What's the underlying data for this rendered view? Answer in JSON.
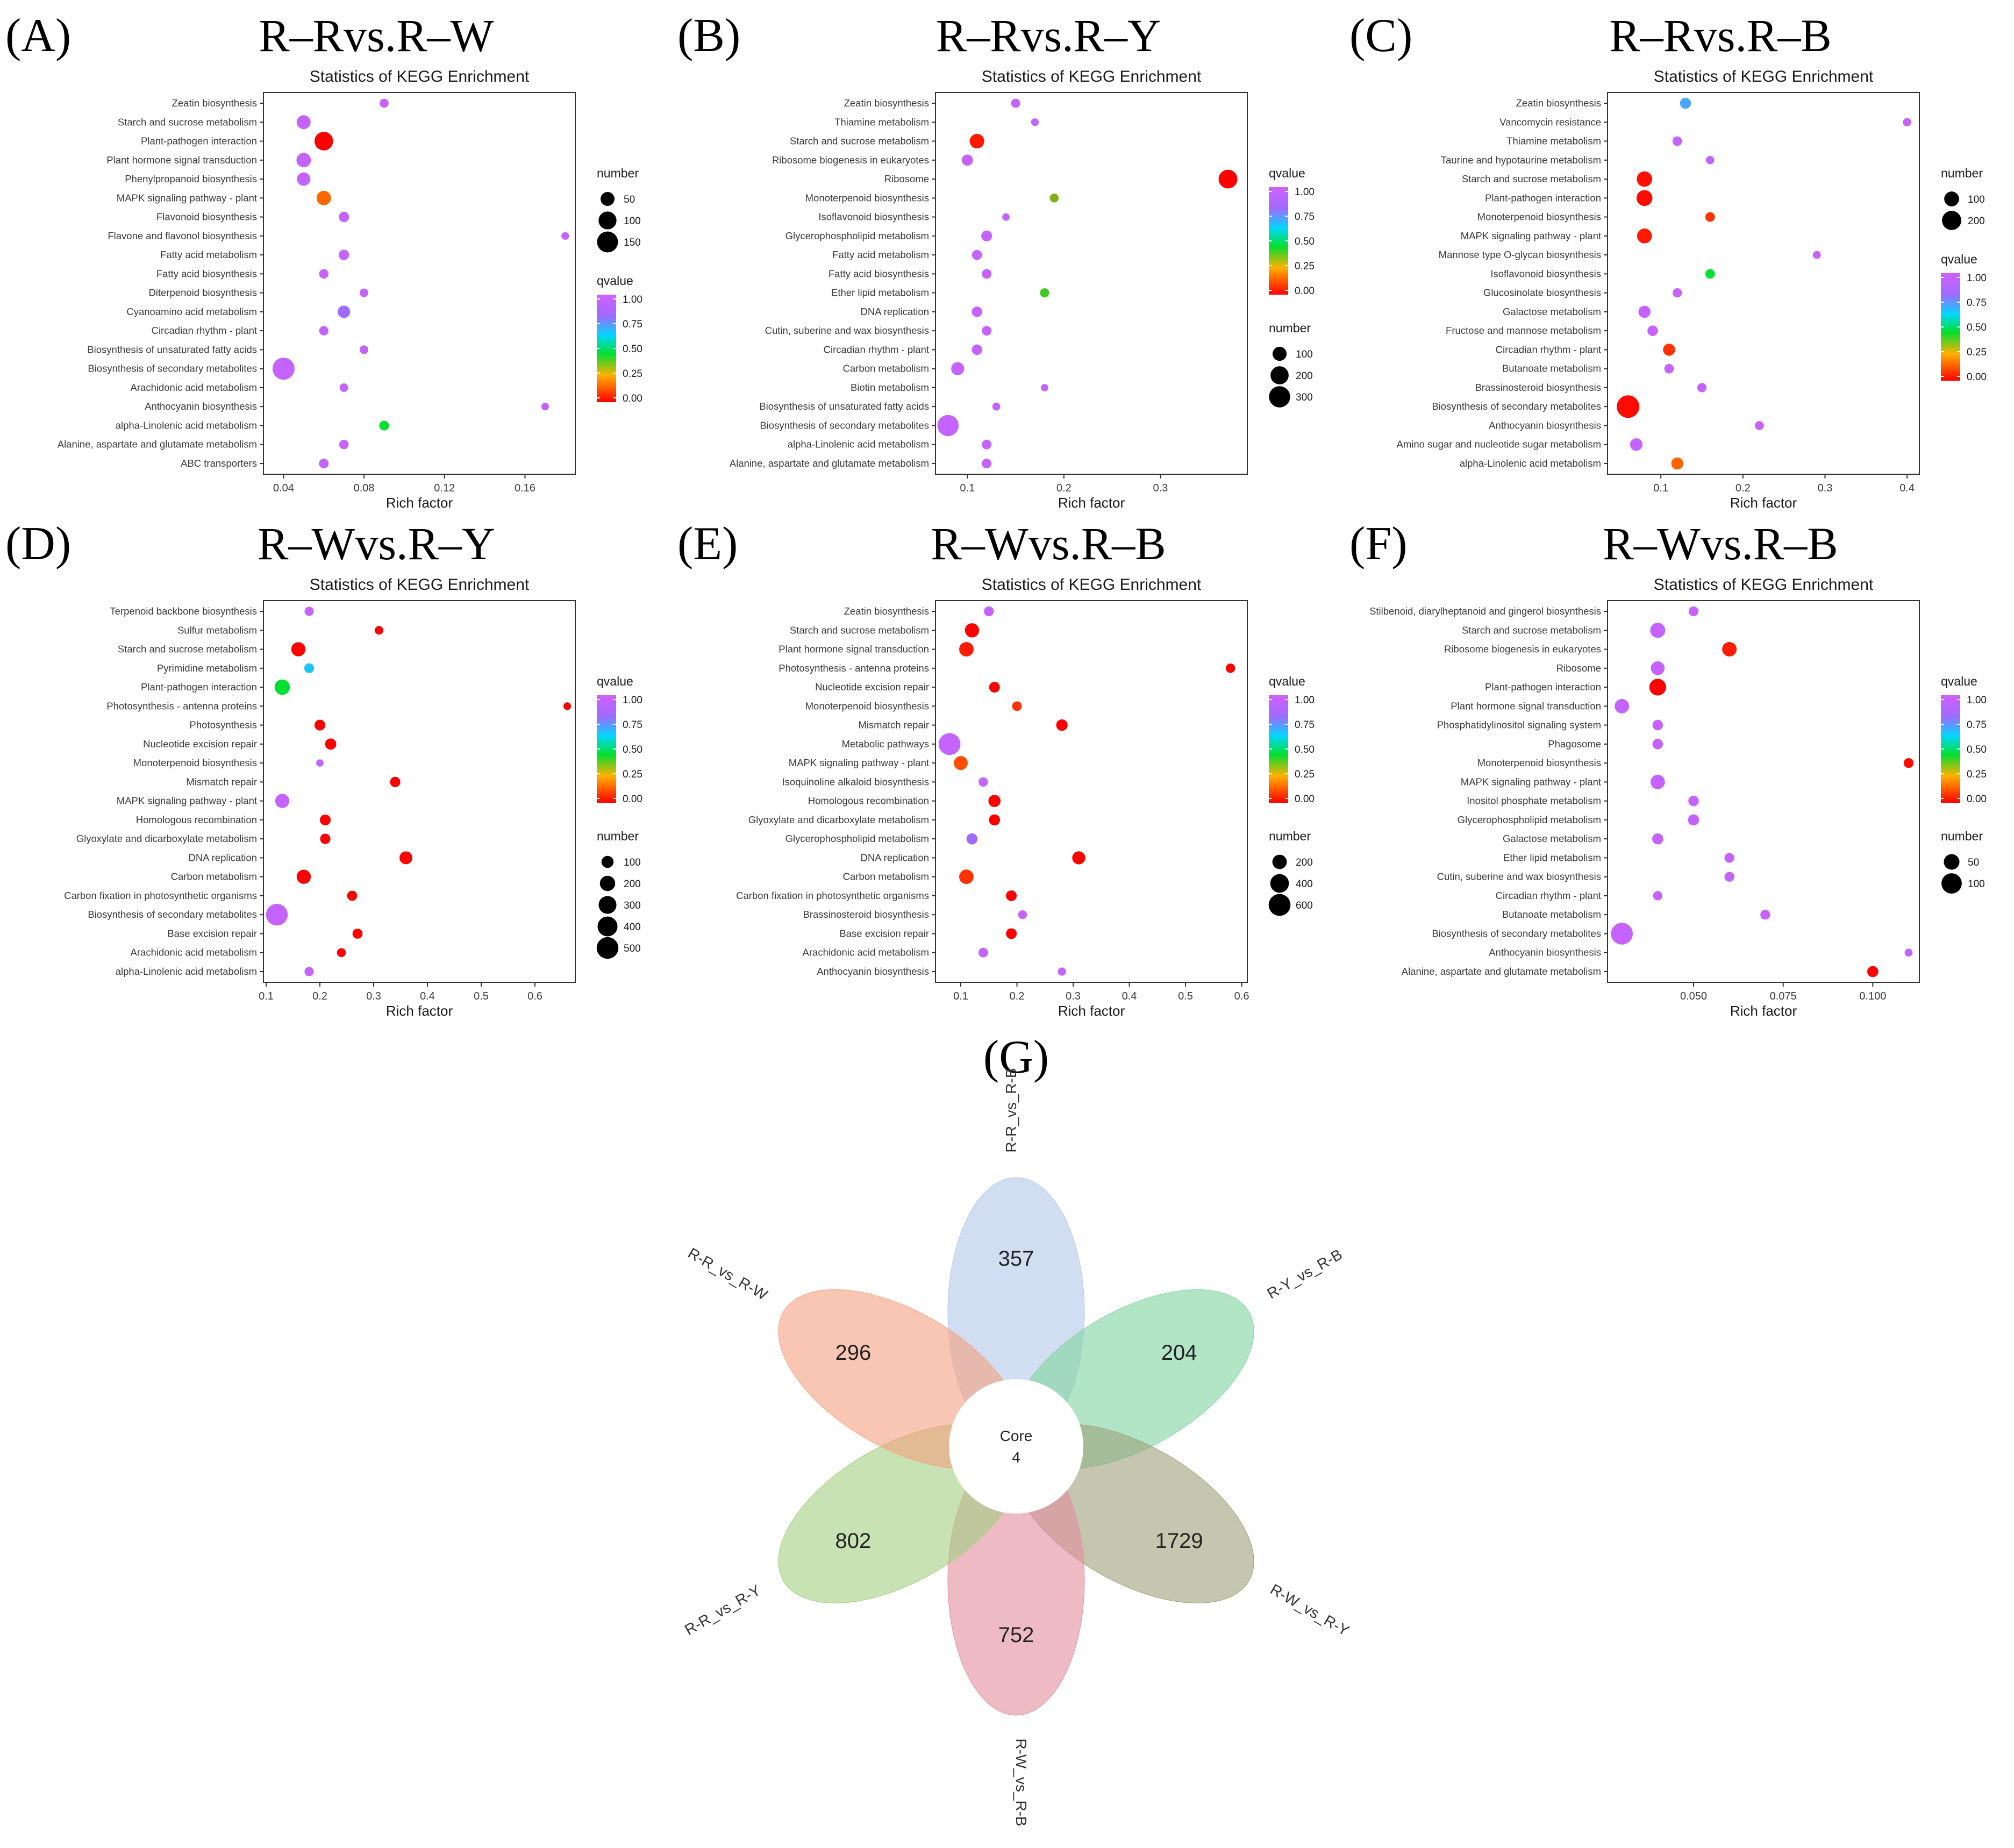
{
  "figure_labels": {
    "G": "(G)"
  },
  "colors": {
    "qvalue_gradient": [
      "#FF0000",
      "#FF7F00",
      "#00E000",
      "#00E5FF",
      "#B84DFF",
      "#D060FF"
    ],
    "venn": [
      "#B3C8E8",
      "#F4A07E",
      "#7ED3A0",
      "#A3CF80",
      "#9DA07A",
      "#E28E9E"
    ]
  },
  "chart_data": [
    {
      "type": "scatter",
      "panel_label": "(A)",
      "panel_title": "R–Rvs.R–W",
      "title": "Statistics of KEGG Enrichment",
      "xlabel": "Rich factor",
      "ylabel": "",
      "xlim": [
        0.03,
        0.185
      ],
      "xticks": [
        0.04,
        0.08,
        0.12,
        0.16
      ],
      "xtick_labels": [
        "0.04",
        "0.08",
        "0.12",
        "0.16"
      ],
      "categories": [
        "Zeatin biosynthesis",
        "Starch and sucrose metabolism",
        "Plant-pathogen interaction",
        "Plant hormone signal transduction",
        "Phenylpropanoid biosynthesis",
        "MAPK signaling pathway - plant",
        "Flavonoid biosynthesis",
        "Flavone and flavonol biosynthesis",
        "Fatty acid metabolism",
        "Fatty acid biosynthesis",
        "Diterpenoid biosynthesis",
        "Cyanoamino acid metabolism",
        "Circadian rhythm - plant",
        "Biosynthesis of unsaturated fatty acids",
        "Biosynthesis of secondary metabolites",
        "Arachidonic acid metabolism",
        "Anthocyanin biosynthesis",
        "alpha-Linolenic acid metabolism",
        "Alanine, aspartate and glutamate metabolism",
        "ABC transporters"
      ],
      "rich_factor": [
        0.09,
        0.05,
        0.06,
        0.05,
        0.05,
        0.06,
        0.07,
        0.18,
        0.07,
        0.06,
        0.08,
        0.07,
        0.06,
        0.08,
        0.04,
        0.07,
        0.17,
        0.09,
        0.07,
        0.06
      ],
      "number": [
        12,
        50,
        110,
        55,
        45,
        55,
        20,
        6,
        20,
        14,
        10,
        35,
        14,
        10,
        170,
        10,
        6,
        16,
        14,
        16
      ],
      "qvalue": [
        0.95,
        0.95,
        0.0,
        0.95,
        0.95,
        0.2,
        0.95,
        0.95,
        0.95,
        0.95,
        0.95,
        0.8,
        0.95,
        0.95,
        0.95,
        0.95,
        0.95,
        0.45,
        0.95,
        0.95
      ],
      "legend_order": [
        "number",
        "qvalue"
      ],
      "size_legend": {
        "title": "number",
        "values": [
          50,
          100,
          150
        ]
      },
      "color_legend": {
        "title": "qvalue",
        "ticks": [
          "1.00",
          "0.75",
          "0.50",
          "0.25",
          "0.00"
        ]
      },
      "size_range": [
        0,
        180
      ]
    },
    {
      "type": "scatter",
      "panel_label": "(B)",
      "panel_title": "R–Rvs.R–Y",
      "title": "Statistics of KEGG Enrichment",
      "xlabel": "Rich factor",
      "ylabel": "",
      "xlim": [
        0.067,
        0.39
      ],
      "xticks": [
        0.1,
        0.2,
        0.3
      ],
      "xtick_labels": [
        "0.1",
        "0.2",
        "0.3"
      ],
      "categories": [
        "Zeatin biosynthesis",
        "Thiamine metabolism",
        "Starch and sucrose metabolism",
        "Ribosome biogenesis in eukaryotes",
        "Ribosome",
        "Monoterpenoid biosynthesis",
        "Isoflavonoid biosynthesis",
        "Glycerophospholipid metabolism",
        "Fatty acid metabolism",
        "Fatty acid biosynthesis",
        "Ether lipid metabolism",
        "DNA replication",
        "Cutin, suberine and wax biosynthesis",
        "Circadian rhythm - plant",
        "Carbon metabolism",
        "Biotin metabolism",
        "Biosynthesis of unsaturated fatty acids",
        "Biosynthesis of secondary metabolites",
        "alpha-Linolenic acid metabolism",
        "Alanine, aspartate and glutamate metabolism"
      ],
      "rich_factor": [
        0.15,
        0.17,
        0.11,
        0.1,
        0.37,
        0.19,
        0.14,
        0.12,
        0.11,
        0.12,
        0.18,
        0.11,
        0.12,
        0.11,
        0.09,
        0.18,
        0.13,
        0.08,
        0.12,
        0.12
      ],
      "number": [
        25,
        12,
        110,
        50,
        220,
        22,
        10,
        45,
        35,
        30,
        25,
        40,
        30,
        40,
        80,
        10,
        14,
        300,
        30,
        30
      ],
      "qvalue": [
        0.95,
        0.95,
        0.05,
        0.95,
        0.0,
        0.35,
        0.95,
        0.95,
        0.95,
        0.95,
        0.4,
        0.95,
        0.95,
        0.95,
        0.95,
        0.95,
        0.95,
        0.95,
        0.95,
        0.95
      ],
      "legend_order": [
        "qvalue",
        "number"
      ],
      "size_legend": {
        "title": "number",
        "values": [
          100,
          200,
          300
        ]
      },
      "color_legend": {
        "title": "qvalue",
        "ticks": [
          "1.00",
          "0.75",
          "0.50",
          "0.25",
          "0.00"
        ]
      },
      "size_range": [
        0,
        350
      ]
    },
    {
      "type": "scatter",
      "panel_label": "(C)",
      "panel_title": "R–Rvs.R–B",
      "title": "Statistics of KEGG Enrichment",
      "xlabel": "Rich factor",
      "ylabel": "",
      "xlim": [
        0.035,
        0.415
      ],
      "xticks": [
        0.1,
        0.2,
        0.3,
        0.4
      ],
      "xtick_labels": [
        "0.1",
        "0.2",
        "0.3",
        "0.4"
      ],
      "categories": [
        "Zeatin biosynthesis",
        "Vancomycin resistance",
        "Thiamine metabolism",
        "Taurine and hypotaurine metabolism",
        "Starch and sucrose metabolism",
        "Plant-pathogen interaction",
        "Monoterpenoid biosynthesis",
        "MAPK signaling pathway - plant",
        "Mannose type O-glycan biosynthesis",
        "Isoflavonoid biosynthesis",
        "Glucosinolate biosynthesis",
        "Galactose metabolism",
        "Fructose and mannose metabolism",
        "Circadian rhythm - plant",
        "Butanoate metabolism",
        "Brassinosteroid biosynthesis",
        "Biosynthesis of secondary metabolites",
        "Anthocyanin biosynthesis",
        "Amino sugar and nucleotide sugar metabolism",
        "alpha-Linolenic acid metabolism"
      ],
      "rich_factor": [
        0.13,
        0.4,
        0.12,
        0.16,
        0.08,
        0.08,
        0.16,
        0.08,
        0.29,
        0.16,
        0.12,
        0.08,
        0.09,
        0.11,
        0.11,
        0.15,
        0.06,
        0.22,
        0.07,
        0.12
      ],
      "number": [
        40,
        15,
        25,
        15,
        110,
        120,
        25,
        100,
        12,
        25,
        22,
        55,
        35,
        55,
        25,
        22,
        300,
        20,
        60,
        55
      ],
      "qvalue": [
        0.7,
        0.95,
        0.95,
        0.95,
        0.03,
        0.02,
        0.1,
        0.05,
        0.95,
        0.45,
        0.95,
        0.95,
        0.95,
        0.1,
        0.95,
        0.95,
        0.02,
        0.95,
        0.95,
        0.2
      ],
      "legend_order": [
        "number",
        "qvalue"
      ],
      "size_legend": {
        "title": "number",
        "values": [
          100,
          200
        ]
      },
      "color_legend": {
        "title": "qvalue",
        "ticks": [
          "1.00",
          "0.75",
          "0.50",
          "0.25",
          "0.00"
        ]
      },
      "size_range": [
        0,
        300
      ]
    },
    {
      "type": "scatter",
      "panel_label": "(D)",
      "panel_title": "R–Wvs.R–Y",
      "title": "Statistics of KEGG Enrichment",
      "xlabel": "Rich factor",
      "ylabel": "",
      "xlim": [
        0.095,
        0.675
      ],
      "xticks": [
        0.1,
        0.2,
        0.3,
        0.4,
        0.5,
        0.6
      ],
      "xtick_labels": [
        "0.1",
        "0.2",
        "0.3",
        "0.4",
        "0.5",
        "0.6"
      ],
      "categories": [
        "Terpenoid backbone biosynthesis",
        "Sulfur metabolism",
        "Starch and sucrose metabolism",
        "Pyrimidine metabolism",
        "Plant-pathogen interaction",
        "Photosynthesis - antenna proteins",
        "Photosynthesis",
        "Nucleotide excision repair",
        "Monoterpenoid biosynthesis",
        "Mismatch repair",
        "MAPK signaling pathway - plant",
        "Homologous recombination",
        "Glyoxylate and dicarboxylate metabolism",
        "DNA replication",
        "Carbon metabolism",
        "Carbon fixation in photosynthetic organisms",
        "Biosynthesis of secondary metabolites",
        "Base excision repair",
        "Arachidonic acid metabolism",
        "alpha-Linolenic acid metabolism"
      ],
      "rich_factor": [
        0.18,
        0.31,
        0.16,
        0.18,
        0.13,
        0.66,
        0.2,
        0.22,
        0.2,
        0.34,
        0.13,
        0.21,
        0.21,
        0.36,
        0.17,
        0.26,
        0.12,
        0.27,
        0.24,
        0.18
      ],
      "number": [
        40,
        30,
        160,
        50,
        200,
        18,
        70,
        80,
        15,
        60,
        160,
        70,
        60,
        120,
        160,
        55,
        500,
        55,
        35,
        40
      ],
      "qvalue": [
        0.95,
        0.0,
        0.0,
        0.65,
        0.45,
        0.0,
        0.0,
        0.0,
        0.95,
        0.0,
        0.95,
        0.0,
        0.0,
        0.0,
        0.0,
        0.0,
        0.95,
        0.0,
        0.0,
        0.95
      ],
      "legend_order": [
        "qvalue",
        "number"
      ],
      "size_legend": {
        "title": "number",
        "values": [
          100,
          200,
          300,
          400,
          500
        ]
      },
      "color_legend": {
        "title": "qvalue",
        "ticks": [
          "1.00",
          "0.75",
          "0.50",
          "0.25",
          "0.00"
        ]
      },
      "size_range": [
        0,
        550
      ]
    },
    {
      "type": "scatter",
      "panel_label": "(E)",
      "panel_title": "R–Wvs.R–B",
      "title": "Statistics of KEGG Enrichment",
      "xlabel": "Rich factor",
      "ylabel": "",
      "xlim": [
        0.055,
        0.61
      ],
      "xticks": [
        0.1,
        0.2,
        0.3,
        0.4,
        0.5,
        0.6
      ],
      "xtick_labels": [
        "0.1",
        "0.2",
        "0.3",
        "0.4",
        "0.5",
        "0.6"
      ],
      "categories": [
        "Zeatin biosynthesis",
        "Starch and sucrose metabolism",
        "Plant hormone signal transduction",
        "Photosynthesis - antenna proteins",
        "Nucleotide excision repair",
        "Monoterpenoid biosynthesis",
        "Mismatch repair",
        "Metabolic pathways",
        "MAPK signaling pathway - plant",
        "Isoquinoline alkaloid biosynthesis",
        "Homologous recombination",
        "Glyoxylate and dicarboxylate metabolism",
        "Glycerophospholipid metabolism",
        "DNA replication",
        "Carbon metabolism",
        "Carbon fixation in photosynthetic organisms",
        "Brassinosteroid biosynthesis",
        "Base excision repair",
        "Arachidonic acid metabolism",
        "Anthocyanin biosynthesis"
      ],
      "rich_factor": [
        0.15,
        0.12,
        0.11,
        0.58,
        0.16,
        0.2,
        0.28,
        0.08,
        0.1,
        0.14,
        0.16,
        0.16,
        0.12,
        0.31,
        0.11,
        0.19,
        0.21,
        0.19,
        0.14,
        0.28
      ],
      "number": [
        60,
        190,
        200,
        50,
        80,
        55,
        100,
        600,
        180,
        50,
        120,
        90,
        90,
        150,
        200,
        80,
        40,
        80,
        55,
        30
      ],
      "qvalue": [
        0.95,
        0.0,
        0.05,
        0.0,
        0.0,
        0.1,
        0.0,
        0.95,
        0.15,
        0.95,
        0.0,
        0.0,
        0.8,
        0.0,
        0.1,
        0.0,
        0.95,
        0.0,
        0.95,
        0.95
      ],
      "legend_order": [
        "qvalue",
        "number"
      ],
      "size_legend": {
        "title": "number",
        "values": [
          200,
          400,
          600
        ]
      },
      "color_legend": {
        "title": "qvalue",
        "ticks": [
          "1.00",
          "0.75",
          "0.50",
          "0.25",
          "0.00"
        ]
      },
      "size_range": [
        0,
        650
      ]
    },
    {
      "type": "scatter",
      "panel_label": "(F)",
      "panel_title": "R–Wvs.R–B",
      "title": "Statistics of KEGG Enrichment",
      "xlabel": "Rich factor",
      "ylabel": "",
      "xlim": [
        0.026,
        0.113
      ],
      "xticks": [
        0.05,
        0.075,
        0.1
      ],
      "xtick_labels": [
        "0.050",
        "0.075",
        "0.100"
      ],
      "categories": [
        "Stilbenoid, diarylheptanoid and gingerol biosynthesis",
        "Starch and sucrose metabolism",
        "Ribosome biogenesis in eukaryotes",
        "Ribosome",
        "Plant-pathogen interaction",
        "Plant hormone signal transduction",
        "Phosphatidylinositol signaling system",
        "Phagosome",
        "Monoterpenoid biosynthesis",
        "MAPK signaling pathway - plant",
        "Inositol phosphate metabolism",
        "Glycerophospholipid metabolism",
        "Galactose metabolism",
        "Ether lipid metabolism",
        "Cutin, suberine and wax biosynthesis",
        "Circadian rhythm - plant",
        "Butanoate metabolism",
        "Biosynthesis of secondary metabolites",
        "Anthocyanin biosynthesis",
        "Alanine, aspartate and glutamate metabolism"
      ],
      "rich_factor": [
        0.05,
        0.04,
        0.06,
        0.04,
        0.04,
        0.03,
        0.04,
        0.04,
        0.11,
        0.04,
        0.05,
        0.05,
        0.04,
        0.06,
        0.06,
        0.04,
        0.07,
        0.03,
        0.11,
        0.1
      ],
      "number": [
        12,
        45,
        40,
        35,
        60,
        40,
        15,
        15,
        12,
        40,
        15,
        18,
        18,
        12,
        12,
        10,
        12,
        120,
        5,
        18
      ],
      "qvalue": [
        0.95,
        0.95,
        0.05,
        0.95,
        0.0,
        0.95,
        0.95,
        0.95,
        0.02,
        0.95,
        0.95,
        0.95,
        0.95,
        0.95,
        0.95,
        0.95,
        0.95,
        0.95,
        0.95,
        0.0
      ],
      "legend_order": [
        "qvalue",
        "number"
      ],
      "size_legend": {
        "title": "number",
        "values": [
          50,
          100
        ]
      },
      "color_legend": {
        "title": "qvalue",
        "ticks": [
          "1.00",
          "0.75",
          "0.50",
          "0.25",
          "0.00"
        ]
      },
      "size_range": [
        0,
        130
      ]
    },
    {
      "type": "venn",
      "panel_label": "(G)",
      "sets": [
        {
          "name": "R-R_vs_R-B",
          "unique": 357
        },
        {
          "name": "R-Y_vs_R-B",
          "unique": 204
        },
        {
          "name": "R-W_vs_R-Y",
          "unique": 1729
        },
        {
          "name": "R-W_vs_R-B",
          "unique": 752
        },
        {
          "name": "R-R_vs_R-Y",
          "unique": 802
        },
        {
          "name": "R-R_vs_R-W",
          "unique": 296
        }
      ],
      "core_label": "Core",
      "core": 4
    }
  ]
}
